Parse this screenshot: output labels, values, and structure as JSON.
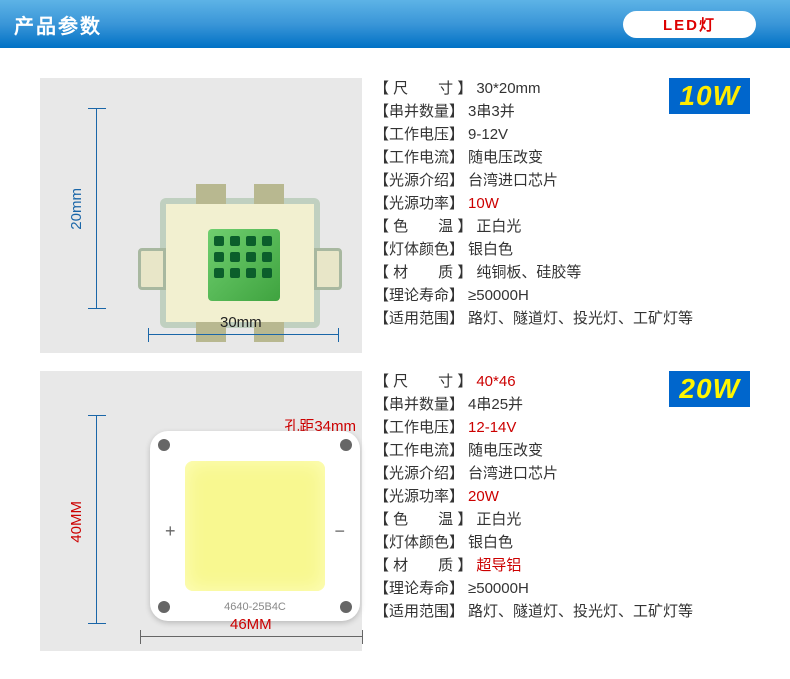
{
  "header": {
    "title": "产品参数",
    "badge": "LED灯"
  },
  "products": [
    {
      "wattage": "10W",
      "image": {
        "dim_v": "20mm",
        "dim_h": "30mm",
        "chip_label": ""
      },
      "specs": [
        {
          "key": "【 尺　　寸 】",
          "val": "30*20mm",
          "red": false
        },
        {
          "key": "【串并数量】",
          "val": "3串3并",
          "red": false
        },
        {
          "key": "【工作电压】",
          "val": "9-12V",
          "red": false
        },
        {
          "key": "【工作电流】",
          "val": "随电压改变",
          "red": false
        },
        {
          "key": "【光源介绍】",
          "val": "台湾进口芯片",
          "red": false
        },
        {
          "key": "【光源功率】",
          "val": "10W",
          "red": true
        },
        {
          "key": "【 色　　温 】",
          "val": "正白光",
          "red": false
        },
        {
          "key": "【灯体颜色】",
          "val": "银白色",
          "red": false
        },
        {
          "key": "【 材　　质 】",
          "val": "纯铜板、硅胶等",
          "red": false
        },
        {
          "key": "【理论寿命】",
          "val": "≥50000H",
          "red": false
        },
        {
          "key": "【适用范围】",
          "val": "路灯、隧道灯、投光灯、工矿灯等",
          "red": false
        }
      ]
    },
    {
      "wattage": "20W",
      "image": {
        "dim_v": "40MM",
        "dim_h": "46MM",
        "hole_dist": "孔距34mm",
        "chip_label": "4640-25B4C"
      },
      "specs": [
        {
          "key": "【 尺　　寸 】",
          "val": "40*46",
          "red": true
        },
        {
          "key": "【串并数量】",
          "val": "4串25并",
          "red": false
        },
        {
          "key": "【工作电压】",
          "val": "12-14V",
          "red": true
        },
        {
          "key": "【工作电流】",
          "val": "随电压改变",
          "red": false
        },
        {
          "key": "【光源介绍】",
          "val": "台湾进口芯片",
          "red": false
        },
        {
          "key": "【光源功率】",
          "val": "20W",
          "red": true
        },
        {
          "key": "【 色　　温 】",
          "val": "正白光",
          "red": false
        },
        {
          "key": "【灯体颜色】",
          "val": "银白色",
          "red": false
        },
        {
          "key": "【 材　　质 】",
          "val": "超导铝",
          "red": true
        },
        {
          "key": "【理论寿命】",
          "val": "≥50000H",
          "red": false
        },
        {
          "key": "【适用范围】",
          "val": "路灯、隧道灯、投光灯、工矿灯等",
          "red": false
        }
      ]
    }
  ]
}
